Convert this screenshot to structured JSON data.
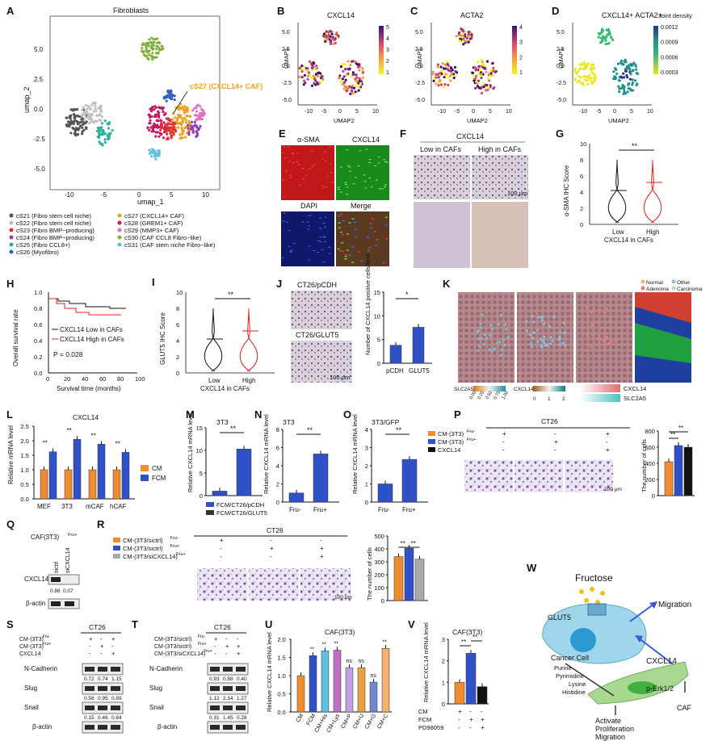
{
  "colors": {
    "fcm_blue": "#3050c8",
    "cm_orange": "#f08c30",
    "black": "#111111",
    "gray": "#a9a9a9",
    "red_line": "#e02020"
  },
  "panelA": {
    "letter": "A",
    "title": "Fibroblasts",
    "xlabel": "umap_1",
    "ylabel": "umap_2",
    "callout": "cS27 (CXCL14+ CAF)",
    "xticks": [
      "-10",
      "-5",
      "0",
      "5",
      "10"
    ],
    "yticks": [
      "5.0",
      "2.5",
      "0.0",
      "-2.5",
      "-5.0"
    ],
    "legend": [
      {
        "label": "cS21 (Fibro stem cell niche)",
        "color": "#555555"
      },
      {
        "label": "cS22 (Fibro stem cell niche)",
        "color": "#c0c0c0"
      },
      {
        "label": "cS23 (Fibro BMP−producing)",
        "color": "#e03030"
      },
      {
        "label": "cS24 (Fibro BMP−producing)",
        "color": "#9040b0"
      },
      {
        "label": "cS25 (Fibro CCL8+)",
        "color": "#2cb0a0"
      },
      {
        "label": "cS26 (Myofibro)",
        "color": "#3060c0"
      },
      {
        "label": "cS27 (CXCL14+ CAF)",
        "color": "#f0a020"
      },
      {
        "label": "cS28 (GREM1+ CAF)",
        "color": "#c01860"
      },
      {
        "label": "cS29 (MMP3+ CAF)",
        "color": "#e070c0"
      },
      {
        "label": "cS30 (CAF CCL8 Fibro−like)",
        "color": "#80b040"
      },
      {
        "label": "cS31 (CAF stem niche Fibro−like)",
        "color": "#60c0e0"
      }
    ]
  },
  "panelB": {
    "letter": "B",
    "title": "CXCL14",
    "xlabel": "UMAP2",
    "ylabel": "UMAP1",
    "scale": [
      "5",
      "4",
      "3",
      "2",
      "1"
    ]
  },
  "panelC": {
    "letter": "C",
    "title": "ACTA2",
    "xlabel": "UMAP2",
    "ylabel": "UMAP1",
    "scale": [
      "4",
      "3",
      "2",
      "1"
    ]
  },
  "panelD": {
    "letter": "D",
    "title": "CXCL14+ ACTA2+",
    "xlabel": "UMAP2",
    "ylabel": "UMAP1",
    "scale_title": "Joint density",
    "scale": [
      "0.0012",
      "0.0009",
      "0.0006",
      "0.0003"
    ]
  },
  "umap_ticks": {
    "x": [
      "-10",
      "-5",
      "0",
      "5",
      "10"
    ],
    "y": [
      "5.0",
      "2.5",
      "0.0",
      "-2.5",
      "-5.0"
    ]
  },
  "panelE": {
    "letter": "E",
    "labels": [
      "α-SMA",
      "CXCL14",
      "DAPI",
      "Merge"
    ]
  },
  "panelF": {
    "letter": "F",
    "title": "CXCL14",
    "labels": [
      "Low in CAFs",
      "High in CAFs"
    ],
    "scale": "100 μm"
  },
  "panelG": {
    "letter": "G",
    "ylabel": "α-SMA IHC Score",
    "groups": [
      "Low",
      "High"
    ],
    "xlabel": "CXCL14 in CAFs",
    "sig": "**",
    "yticks": [
      "0",
      "2",
      "4",
      "6",
      "8",
      "10"
    ]
  },
  "panelH": {
    "letter": "H",
    "ylabel": "Overall survival rate",
    "xlabel": "Survival time (months)",
    "legend": [
      "CXCL14 Low in CAFs",
      "CXCL14 High in CAFs"
    ],
    "pval": "P = 0.028",
    "xticks": [
      "0",
      "20",
      "40",
      "60",
      "80",
      "100"
    ],
    "yticks": [
      "0.0",
      "0.2",
      "0.4",
      "0.6",
      "0.8",
      "1.0"
    ]
  },
  "panelI": {
    "letter": "I",
    "ylabel": "GLUT5 IHC Score",
    "groups": [
      "Low",
      "High"
    ],
    "xlabel": "CXCL14 in CAFs",
    "sig": "**",
    "yticks": [
      "0",
      "2",
      "4",
      "6",
      "8",
      "10"
    ]
  },
  "panelJ": {
    "letter": "J",
    "labels": [
      "CT26/pCDH",
      "CT26/GLUT5"
    ],
    "scale": "100 μm",
    "ylabel": "Number of CXCL14 positive cells/field",
    "groups": [
      "pCDH",
      "GLUT5"
    ],
    "sig": "*",
    "yticks": [
      "0",
      "5",
      "10",
      "15"
    ],
    "values": [
      3.8,
      7.6
    ]
  },
  "panelK": {
    "letter": "K",
    "legend": [
      "Normal",
      "Other",
      "Adenoma",
      "Carcinoma"
    ],
    "legend_colors": [
      "#f5b080",
      "#9fb7e0",
      "#f07a70",
      "#b4e0b0"
    ],
    "scale1_title": "SLC2A5",
    "scale1": [
      "0.00",
      "0.25",
      "0.50",
      "0.75",
      "1.00"
    ],
    "scale2_title": "CXCL14",
    "scale2": [
      "0",
      "1",
      "2"
    ],
    "markers": [
      "CXCL14",
      "SLC2A5"
    ]
  },
  "panelL": {
    "letter": "L",
    "title": "CXCL14",
    "ylabel": "Relative mRNA level",
    "categories": [
      "MEF",
      "3T3",
      "mCAF",
      "hCAF"
    ],
    "series": [
      {
        "name": "CM",
        "values": [
          1.0,
          1.0,
          1.0,
          1.0
        ]
      },
      {
        "name": "FCM",
        "values": [
          1.62,
          2.05,
          1.88,
          1.6
        ]
      }
    ],
    "sigs": [
      "**",
      "**",
      "**",
      "**"
    ],
    "yticks": [
      "0.0",
      "0.5",
      "1.0",
      "1.5",
      "2.0",
      "2.5"
    ]
  },
  "panelM": {
    "letter": "M",
    "title": "3T3",
    "ylabel": "Relative CXCL14 mRNA level",
    "legend": [
      "FCM/CT26/pCDH",
      "FCM/CT26/GLUT5"
    ],
    "values": [
      1.0,
      10.3
    ],
    "sig": "**",
    "yticks": [
      "0",
      "5",
      "10",
      "15"
    ]
  },
  "panelN": {
    "letter": "N",
    "title": "3T3",
    "ylabel": "Relative CXCL14 mRNA level",
    "groups": [
      "Fru-",
      "Fru+"
    ],
    "values": [
      1.0,
      5.3
    ],
    "sig": "**",
    "yticks": [
      "0",
      "2",
      "4",
      "6",
      "8"
    ]
  },
  "panelO": {
    "letter": "O",
    "title": "3T3/GFP",
    "ylabel": "Relative CXCL14 mRNA level",
    "groups": [
      "Fru-",
      "Fru+"
    ],
    "values": [
      1.0,
      2.35
    ],
    "sig": "**",
    "yticks": [
      "0",
      "1",
      "2",
      "3",
      "4"
    ]
  },
  "panelP": {
    "letter": "P",
    "title": "CT26",
    "rows": [
      {
        "label": "CM-(3T3)",
        "sup": "Fru-",
        "signs": [
          "+",
          "-",
          "+"
        ]
      },
      {
        "label": "CM-(3T3)",
        "sup": "Fru+",
        "signs": [
          "-",
          "+",
          "-"
        ]
      },
      {
        "label": "CXCL14",
        "sup": "",
        "signs": [
          "-",
          "-",
          "+"
        ]
      }
    ],
    "ylabel": "The number of cells",
    "values": [
      420,
      620,
      600
    ],
    "sigs": [
      "**",
      "**"
    ],
    "scale": "100 μm",
    "yticks": [
      "0",
      "200",
      "400",
      "600",
      "800"
    ]
  },
  "panelQ": {
    "letter": "Q",
    "title": "CAF(3T3)",
    "title_sup": "Fru+",
    "lanes": [
      "sictrl",
      "siCXCL14"
    ],
    "rows": [
      "CXCL14",
      "β-actin"
    ],
    "quant": [
      "0.86",
      "0.07"
    ]
  },
  "panelR": {
    "letter": "R",
    "title": "CT26",
    "rows": [
      {
        "label": "CM-(3T3/sictrl)",
        "sup": "Fru-",
        "signs": [
          "+",
          "-",
          "-"
        ]
      },
      {
        "label": "CM-(3T3/sictrl)",
        "sup": "Fru+",
        "signs": [
          "-",
          "+",
          "+"
        ]
      },
      {
        "label": "CM-(3T3/siCXCL14)",
        "sup": "Fru+",
        "signs": [
          "-",
          "-",
          "+"
        ]
      }
    ],
    "ylabel": "The number of cells",
    "values": [
      340,
      405,
      320
    ],
    "sigs": [
      "**",
      "**"
    ],
    "scale": "100 μm",
    "yticks": [
      "0",
      "100",
      "200",
      "300",
      "400",
      "500"
    ]
  },
  "panelS": {
    "letter": "S",
    "title": "CT26",
    "rows": [
      {
        "label": "CM-(3T3)",
        "sup": "Fru-",
        "signs": [
          "+",
          "-",
          "+"
        ]
      },
      {
        "label": "CM-(3T3)",
        "sup": "Fru+",
        "signs": [
          "-",
          "+",
          "-"
        ]
      },
      {
        "label": "CXCL14",
        "sup": "",
        "signs": [
          "-",
          "-",
          "+"
        ]
      }
    ],
    "blots": [
      {
        "name": "N-Cadherin",
        "quant": [
          "0.72",
          "0.74",
          "1.15"
        ]
      },
      {
        "name": "Slug",
        "quant": [
          "0.56",
          "0.95",
          "0.89"
        ]
      },
      {
        "name": "Snail",
        "quant": [
          "0.15",
          "0.46",
          "0.84"
        ]
      },
      {
        "name": "β-actin",
        "quant": []
      }
    ]
  },
  "panelT": {
    "letter": "T",
    "title": "CT26",
    "rows": [
      {
        "label": "CM-(3T3/sictrl)",
        "sup": "Fru-",
        "signs": [
          "+",
          "-",
          "-"
        ]
      },
      {
        "label": "CM-(3T3/sictrl)",
        "sup": "Fru+",
        "signs": [
          "-",
          "+",
          "+"
        ]
      },
      {
        "label": "CM-(3T3/siCXCL14)",
        "sup": "Fru+",
        "signs": [
          "-",
          "-",
          "+"
        ]
      }
    ],
    "blots": [
      {
        "name": "N-Cadherin",
        "quant": [
          "0.93",
          "0.88",
          "0.40"
        ]
      },
      {
        "name": "Slug",
        "quant": [
          "1.12",
          "2.14",
          "1.27"
        ]
      },
      {
        "name": "Snail",
        "quant": [
          "0.31",
          "1.45",
          "0.28"
        ]
      },
      {
        "name": "β-actin",
        "quant": []
      }
    ]
  },
  "panelU": {
    "letter": "U",
    "title": "CAF(3T3)",
    "ylabel": "Relative CXCL14 mRNA level",
    "categories": [
      "CM",
      "FCM",
      "CM+His",
      "CM+Lys",
      "CM+P",
      "CM+U",
      "CM+G",
      "CM+C"
    ],
    "values": [
      1.0,
      1.55,
      1.68,
      1.7,
      1.22,
      1.22,
      0.82,
      1.75
    ],
    "sigs": [
      "",
      "**",
      "**",
      "**",
      "ns",
      "ns",
      "ns",
      "**"
    ],
    "colors": [
      "#f08c30",
      "#3050c8",
      "#60c0e0",
      "#c070c0",
      "#c0a0e0",
      "#e8a040",
      "#7088d0",
      "#f5b070"
    ],
    "yticks": [
      "0.0",
      "0.5",
      "1.0",
      "1.5",
      "2.0"
    ]
  },
  "panelV": {
    "letter": "V",
    "title": "CAF(3T3)",
    "ylabel": "Relative CXCL14 mRNA level",
    "values": [
      1.0,
      2.35,
      0.8
    ],
    "rows": [
      {
        "label": "CM",
        "signs": [
          "+",
          "-",
          "-"
        ]
      },
      {
        "label": "FCM",
        "signs": [
          "-",
          "+",
          "+"
        ]
      },
      {
        "label": "PD98059",
        "signs": [
          "-",
          "-",
          "+"
        ]
      }
    ],
    "sigs": [
      "**",
      "**"
    ],
    "yticks": [
      "0",
      "1",
      "2",
      "3"
    ]
  },
  "panelW": {
    "letter": "W",
    "labels": {
      "fructose": "Fructose",
      "glut5": "GLUT5",
      "migration": "Migration",
      "cancer_cell": "Cancer Cell",
      "cxcl14": "CXCL14",
      "metabolites": [
        "Purine",
        "Pyrimidine",
        "Lysine",
        "Histidine"
      ],
      "perk": "p-Erk1/2",
      "caf": "CAF",
      "outcomes": [
        "Activate",
        "Proliferation",
        "Migration"
      ]
    }
  }
}
